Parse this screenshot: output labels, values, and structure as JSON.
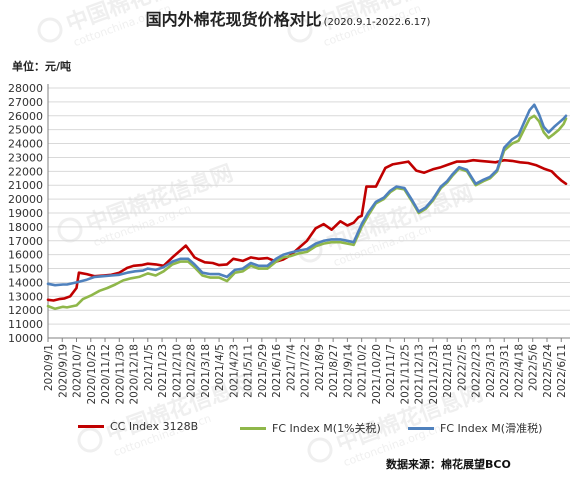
{
  "title": "国内外棉花现货价格对比",
  "subtitle": "(2020.9.1-2022.6.17)",
  "unit_label": "单位：元/吨",
  "source": "数据来源：棉花展望BCO",
  "watermark": {
    "brand": "中国棉花信息网",
    "url": "cottonchina.org.cn"
  },
  "colors": {
    "cc": "#c00000",
    "fc1": "#8fb74a",
    "fcs": "#4f81bd",
    "grid": "#d9d9d9",
    "axis": "#808080"
  },
  "chart_data": {
    "type": "line",
    "ylim": [
      10000,
      28000
    ],
    "ystep": 1000,
    "x_tick_labels": [
      "2020/9/1",
      "2020/9/19",
      "2020/10/7",
      "2020/10/25",
      "2020/11/12",
      "2020/11/30",
      "2020/12/18",
      "2021/1/5",
      "2021/1/23",
      "2021/2/10",
      "2021/2/28",
      "2021/3/18",
      "2021/4/5",
      "2021/4/23",
      "2021/5/11",
      "2021/5/29",
      "2021/6/16",
      "2021/7/4",
      "2021/7/22",
      "2021/8/9",
      "2021/8/27",
      "2021/9/14",
      "2021/10/2",
      "2021/10/20",
      "2021/11/7",
      "2021/11/25",
      "2021/12/13",
      "2021/12/31",
      "2022/1/18",
      "2022/2/5",
      "2022/2/23",
      "2022/3/13",
      "2022/3/31",
      "2022/4/18",
      "2022/5/6",
      "2022/5/24",
      "2022/6/11"
    ],
    "series": [
      {
        "name": "CC Index 3128B",
        "color_key": "cc",
        "x": [
          "2020/9/1",
          "2020/9/8",
          "2020/9/15",
          "2020/9/22",
          "2020/9/29",
          "2020/10/7",
          "2020/10/10",
          "2020/10/20",
          "2020/10/30",
          "2020/11/10",
          "2020/11/20",
          "2020/11/30",
          "2020/12/10",
          "2020/12/18",
          "2020/12/28",
          "2021/1/5",
          "2021/1/15",
          "2021/1/25",
          "2021/2/5",
          "2021/2/15",
          "2021/2/22",
          "2021/2/28",
          "2021/3/5",
          "2021/3/10",
          "2021/3/18",
          "2021/3/28",
          "2021/4/5",
          "2021/4/15",
          "2021/4/23",
          "2021/5/5",
          "2021/5/15",
          "2021/5/25",
          "2021/6/5",
          "2021/6/16",
          "2021/6/25",
          "2021/7/4",
          "2021/7/15",
          "2021/7/25",
          "2021/8/5",
          "2021/8/15",
          "2021/8/25",
          "2021/9/5",
          "2021/9/14",
          "2021/9/22",
          "2021/9/28",
          "2021/10/2",
          "2021/10/8",
          "2021/10/20",
          "2021/11/1",
          "2021/11/10",
          "2021/11/20",
          "2021/11/30",
          "2021/12/10",
          "2021/12/20",
          "2021/12/31",
          "2022/1/10",
          "2022/1/20",
          "2022/1/30",
          "2022/2/10",
          "2022/2/20",
          "2022/3/1",
          "2022/3/10",
          "2022/3/20",
          "2022/3/31",
          "2022/4/10",
          "2022/4/20",
          "2022/4/30",
          "2022/5/10",
          "2022/5/20",
          "2022/5/30",
          "2022/6/5",
          "2022/6/11",
          "2022/6/17"
        ],
        "y": [
          12750,
          12700,
          12800,
          12850,
          13000,
          13600,
          14700,
          14600,
          14450,
          14500,
          14550,
          14700,
          15050,
          15200,
          15250,
          15350,
          15300,
          15200,
          15800,
          16300,
          16650,
          16200,
          15800,
          15650,
          15450,
          15400,
          15250,
          15300,
          15700,
          15550,
          15800,
          15700,
          15750,
          15500,
          15650,
          15950,
          16500,
          17000,
          17900,
          18200,
          17800,
          18400,
          18100,
          18300,
          18700,
          18800,
          20900,
          20900,
          22250,
          22500,
          22600,
          22700,
          22050,
          21900,
          22150,
          22300,
          22500,
          22700,
          22700,
          22800,
          22750,
          22700,
          22650,
          22800,
          22750,
          22650,
          22600,
          22450,
          22200,
          22000,
          21650,
          21350,
          21100
        ]
      },
      {
        "name": "FC Index M(1%关税)",
        "color_key": "fc1",
        "x": [
          "2020/9/1",
          "2020/9/10",
          "2020/9/20",
          "2020/9/25",
          "2020/10/7",
          "2020/10/15",
          "2020/10/25",
          "2020/11/5",
          "2020/11/15",
          "2020/11/25",
          "2020/12/5",
          "2020/12/15",
          "2020/12/25",
          "2021/1/5",
          "2021/1/15",
          "2021/1/25",
          "2021/2/5",
          "2021/2/15",
          "2021/2/25",
          "2021/3/5",
          "2021/3/15",
          "2021/3/25",
          "2021/4/5",
          "2021/4/15",
          "2021/4/25",
          "2021/5/5",
          "2021/5/15",
          "2021/5/25",
          "2021/6/5",
          "2021/6/16",
          "2021/6/25",
          "2021/7/4",
          "2021/7/15",
          "2021/7/25",
          "2021/8/5",
          "2021/8/15",
          "2021/8/25",
          "2021/9/5",
          "2021/9/14",
          "2021/9/22",
          "2021/10/2",
          "2021/10/10",
          "2021/10/20",
          "2021/10/30",
          "2021/11/7",
          "2021/11/15",
          "2021/11/25",
          "2021/12/5",
          "2021/12/13",
          "2021/12/22",
          "2021/12/31",
          "2022/1/10",
          "2022/1/18",
          "2022/1/25",
          "2022/2/2",
          "2022/2/12",
          "2022/2/23",
          "2022/3/5",
          "2022/3/13",
          "2022/3/22",
          "2022/3/31",
          "2022/4/10",
          "2022/4/18",
          "2022/4/25",
          "2022/5/2",
          "2022/5/8",
          "2022/5/14",
          "2022/5/20",
          "2022/5/26",
          "2022/6/2",
          "2022/6/8",
          "2022/6/14",
          "2022/6/17"
        ],
        "y": [
          12300,
          12100,
          12250,
          12200,
          12350,
          12800,
          13050,
          13400,
          13600,
          13850,
          14150,
          14300,
          14400,
          14650,
          14500,
          14800,
          15300,
          15500,
          15500,
          15100,
          14500,
          14350,
          14350,
          14100,
          14700,
          14800,
          15200,
          15000,
          15000,
          15500,
          15800,
          15900,
          16100,
          16200,
          16600,
          16800,
          16900,
          16900,
          16800,
          16700,
          18000,
          18800,
          19700,
          20000,
          20500,
          20800,
          20700,
          19800,
          19000,
          19300,
          19900,
          20800,
          21200,
          21700,
          22200,
          22000,
          21000,
          21300,
          21500,
          22000,
          23500,
          24000,
          24200,
          25000,
          25800,
          26000,
          25600,
          24800,
          24400,
          24700,
          25000,
          25400,
          25800
        ]
      },
      {
        "name": "FC Index M(滑准税)",
        "color_key": "fcs",
        "x": [
          "2020/9/1",
          "2020/9/10",
          "2020/9/20",
          "2020/9/25",
          "2020/10/7",
          "2020/10/20",
          "2020/10/30",
          "2020/11/10",
          "2020/11/20",
          "2020/11/30",
          "2020/12/10",
          "2020/12/20",
          "2020/12/30",
          "2021/1/5",
          "2021/1/15",
          "2021/1/25",
          "2021/2/5",
          "2021/2/15",
          "2021/2/25",
          "2021/3/5",
          "2021/3/15",
          "2021/3/25",
          "2021/4/5",
          "2021/4/15",
          "2021/4/25",
          "2021/5/5",
          "2021/5/15",
          "2021/5/25",
          "2021/6/5",
          "2021/6/16",
          "2021/6/25",
          "2021/7/4",
          "2021/7/15",
          "2021/7/25",
          "2021/8/5",
          "2021/8/15",
          "2021/8/25",
          "2021/9/5",
          "2021/9/14",
          "2021/9/22",
          "2021/10/2",
          "2021/10/10",
          "2021/10/20",
          "2021/10/30",
          "2021/11/7",
          "2021/11/15",
          "2021/11/25",
          "2021/12/5",
          "2021/12/13",
          "2021/12/22",
          "2021/12/31",
          "2022/1/10",
          "2022/1/18",
          "2022/1/25",
          "2022/2/2",
          "2022/2/12",
          "2022/2/23",
          "2022/3/5",
          "2022/3/13",
          "2022/3/22",
          "2022/3/31",
          "2022/4/10",
          "2022/4/18",
          "2022/4/25",
          "2022/5/2",
          "2022/5/8",
          "2022/5/14",
          "2022/5/20",
          "2022/5/26",
          "2022/6/2",
          "2022/6/8",
          "2022/6/14",
          "2022/6/17"
        ],
        "y": [
          13900,
          13800,
          13850,
          13850,
          14000,
          14200,
          14400,
          14450,
          14500,
          14550,
          14700,
          14800,
          14850,
          15000,
          14900,
          15100,
          15500,
          15700,
          15700,
          15300,
          14700,
          14600,
          14600,
          14400,
          14900,
          15000,
          15400,
          15200,
          15200,
          15700,
          16000,
          16150,
          16300,
          16400,
          16800,
          17000,
          17100,
          17100,
          17000,
          16900,
          18200,
          19000,
          19800,
          20100,
          20600,
          20900,
          20800,
          19900,
          19100,
          19400,
          20000,
          20900,
          21300,
          21800,
          22300,
          22100,
          21100,
          21400,
          21600,
          22100,
          23700,
          24300,
          24600,
          25500,
          26400,
          26800,
          26100,
          25200,
          24800,
          25200,
          25500,
          25800,
          26000
        ]
      }
    ]
  }
}
